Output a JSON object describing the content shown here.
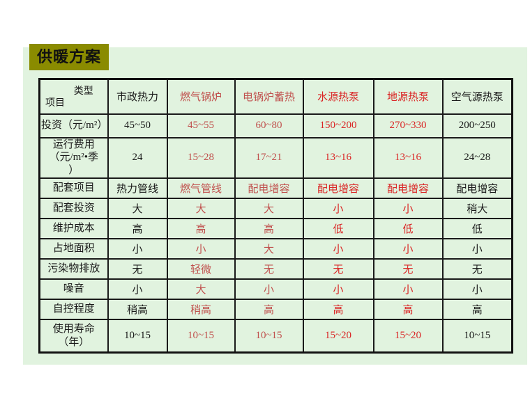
{
  "slide": {
    "title": "供暖方案"
  },
  "colors": {
    "black": "#1a1a1a",
    "muted": "#c0504d",
    "bright": "#da2525"
  },
  "table": {
    "corner": {
      "top": "类型",
      "bottom": "项目"
    },
    "columns": [
      {
        "label": "市政热力",
        "color": "black"
      },
      {
        "label": "燃气锅炉",
        "color": "muted"
      },
      {
        "label": "电锅炉蓄热",
        "color": "muted"
      },
      {
        "label": "水源热泵",
        "color": "bright"
      },
      {
        "label": "地源热泵",
        "color": "bright"
      },
      {
        "label": "空气源热泵",
        "color": "black"
      }
    ],
    "rows": [
      {
        "label": "投资（元/m²）",
        "values": [
          "45~50",
          "45~55",
          "60~80",
          "150~200",
          "270~330",
          "200~250"
        ]
      },
      {
        "label": "运行费用\n（元/m²•季\n）",
        "values": [
          "24",
          "15~28",
          "17~21",
          "13~16",
          "13~16",
          "24~28"
        ]
      },
      {
        "label": "配套项目",
        "values": [
          "热力管线",
          "燃气管线",
          "配电增容",
          "配电增容",
          "配电增容",
          "配电增容"
        ]
      },
      {
        "label": "配套投资",
        "values": [
          "大",
          "大",
          "大",
          "小",
          "小",
          "稍大"
        ]
      },
      {
        "label": "维护成本",
        "values": [
          "高",
          "高",
          "高",
          "低",
          "低",
          "低"
        ]
      },
      {
        "label": "占地面积",
        "values": [
          "小",
          "小",
          "大",
          "小",
          "小",
          "小"
        ]
      },
      {
        "label": "污染物排放",
        "values": [
          "无",
          "轻微",
          "无",
          "无",
          "无",
          "无"
        ]
      },
      {
        "label": "噪音",
        "values": [
          "小",
          "大",
          "小",
          "小",
          "小",
          "小"
        ]
      },
      {
        "label": "自控程度",
        "values": [
          "稍高",
          "稍高",
          "高",
          "高",
          "高",
          "高"
        ]
      },
      {
        "label": "使用寿命\n（年）",
        "values": [
          "10~15",
          "10~15",
          "10~15",
          "15~20",
          "15~20",
          "10~15"
        ]
      }
    ]
  }
}
